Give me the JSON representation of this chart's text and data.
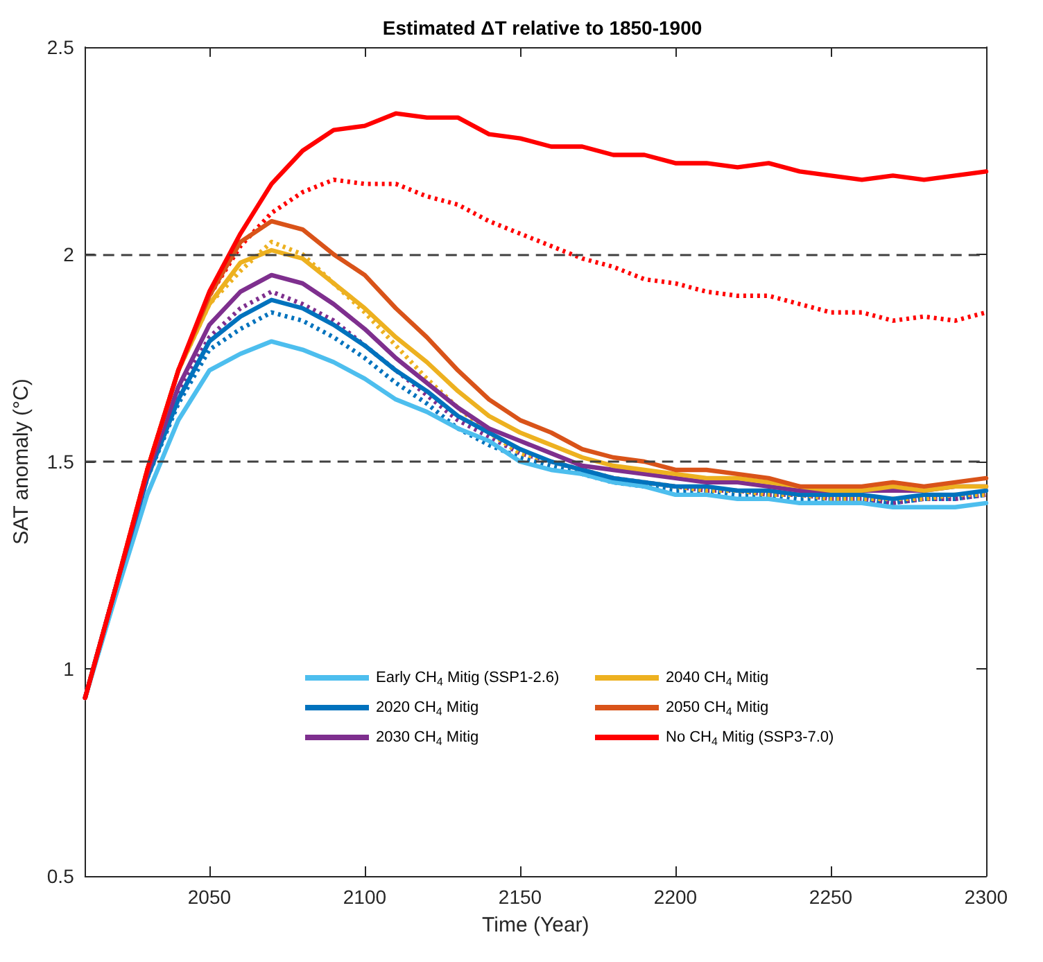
{
  "chart_data": {
    "type": "line",
    "title": "Estimated ΔT relative to 1850-1900",
    "xlabel": "Time (Year)",
    "ylabel": "SAT anomaly (°C)",
    "x": [
      2010,
      2020,
      2030,
      2040,
      2050,
      2060,
      2070,
      2080,
      2090,
      2100,
      2110,
      2120,
      2130,
      2140,
      2150,
      2160,
      2170,
      2180,
      2190,
      2200,
      2210,
      2220,
      2230,
      2240,
      2250,
      2260,
      2270,
      2280,
      2290,
      2300
    ],
    "series": [
      {
        "name": "Early CH$_{4}$ Mitig (SSP1-2.6)",
        "color": "#4dbeee",
        "values": [
          0.93,
          1.18,
          1.42,
          1.6,
          1.72,
          1.76,
          1.79,
          1.77,
          1.74,
          1.7,
          1.65,
          1.62,
          1.58,
          1.55,
          1.5,
          1.48,
          1.47,
          1.45,
          1.44,
          1.42,
          1.42,
          1.41,
          1.41,
          1.4,
          1.4,
          1.4,
          1.39,
          1.39,
          1.39,
          1.4
        ]
      },
      {
        "name": "2020 CH$_{4}$ Mitig",
        "color": "#0072bd",
        "values": [
          0.93,
          1.2,
          1.46,
          1.65,
          1.79,
          1.85,
          1.89,
          1.87,
          1.83,
          1.78,
          1.72,
          1.67,
          1.61,
          1.57,
          1.53,
          1.5,
          1.48,
          1.46,
          1.45,
          1.44,
          1.44,
          1.43,
          1.43,
          1.42,
          1.42,
          1.42,
          1.41,
          1.42,
          1.42,
          1.43
        ]
      },
      {
        "name": "2030 CH$_{4}$ Mitig",
        "color": "#7e2f8e",
        "values": [
          0.93,
          1.2,
          1.47,
          1.68,
          1.83,
          1.91,
          1.95,
          1.93,
          1.88,
          1.82,
          1.75,
          1.69,
          1.63,
          1.58,
          1.55,
          1.52,
          1.49,
          1.48,
          1.47,
          1.46,
          1.45,
          1.45,
          1.44,
          1.43,
          1.43,
          1.43,
          1.43,
          1.43,
          1.44,
          1.44
        ]
      },
      {
        "name": "2040 CH$_{4}$ Mitig",
        "color": "#edb120",
        "values": [
          null,
          null,
          1.48,
          1.72,
          1.88,
          1.98,
          2.01,
          1.99,
          1.93,
          1.87,
          1.8,
          1.74,
          1.67,
          1.61,
          1.57,
          1.54,
          1.51,
          1.49,
          1.48,
          1.47,
          1.46,
          1.46,
          1.45,
          1.44,
          1.43,
          1.43,
          1.44,
          1.43,
          1.44,
          1.44
        ]
      },
      {
        "name": "2050 CH$_{4}$ Mitig",
        "color": "#d95319",
        "values": [
          0.93,
          1.2,
          1.48,
          1.72,
          1.9,
          2.03,
          2.08,
          2.06,
          2.0,
          1.95,
          1.87,
          1.8,
          1.72,
          1.65,
          1.6,
          1.57,
          1.53,
          1.51,
          1.5,
          1.48,
          1.48,
          1.47,
          1.46,
          1.44,
          1.44,
          1.44,
          1.45,
          1.44,
          1.45,
          1.46
        ]
      },
      {
        "name": "No CH$_{4}$ Mitig (SSP3-7.0)",
        "color": "#ff0000",
        "values": [
          0.93,
          1.2,
          1.48,
          1.72,
          1.91,
          2.05,
          2.17,
          2.25,
          2.3,
          2.31,
          2.34,
          2.33,
          2.33,
          2.29,
          2.28,
          2.26,
          2.26,
          2.24,
          2.24,
          2.22,
          2.22,
          2.21,
          2.22,
          2.2,
          2.19,
          2.18,
          2.19,
          2.18,
          2.19,
          2.2
        ]
      },
      {
        "color": "#0072bd",
        "line_style": "dotted",
        "values": [
          0.93,
          1.2,
          1.46,
          1.64,
          1.77,
          1.82,
          1.86,
          1.84,
          1.8,
          1.75,
          1.69,
          1.64,
          1.58,
          1.54,
          1.51,
          1.49,
          1.47,
          1.45,
          1.44,
          1.43,
          1.43,
          1.42,
          1.42,
          1.41,
          1.41,
          1.41,
          1.4,
          1.41,
          1.41,
          1.42
        ]
      },
      {
        "color": "#7e2f8e",
        "line_style": "dotted",
        "values": [
          0.93,
          1.2,
          1.47,
          1.67,
          1.8,
          1.87,
          1.91,
          1.88,
          1.84,
          1.78,
          1.72,
          1.66,
          1.6,
          1.56,
          1.52,
          1.5,
          1.48,
          1.46,
          1.45,
          1.44,
          1.43,
          1.43,
          1.42,
          1.42,
          1.41,
          1.41,
          1.4,
          1.41,
          1.41,
          1.42
        ]
      },
      {
        "color": "#edb120",
        "line_style": "dotted",
        "values": [
          null,
          null,
          null,
          1.72,
          1.88,
          1.96,
          2.03,
          2.0,
          1.93,
          1.86,
          1.78,
          1.7,
          1.63,
          1.57,
          1.52,
          1.5,
          1.48,
          1.46,
          1.45,
          1.44,
          1.43,
          1.43,
          1.42,
          1.42,
          1.41,
          1.41,
          1.41,
          1.41,
          1.42,
          1.42
        ]
      },
      {
        "color": "#ff0000",
        "line_style": "dotted",
        "values": [
          0.93,
          1.2,
          1.48,
          1.72,
          1.9,
          2.02,
          2.1,
          2.15,
          2.18,
          2.17,
          2.17,
          2.14,
          2.12,
          2.08,
          2.05,
          2.02,
          1.99,
          1.97,
          1.94,
          1.93,
          1.91,
          1.9,
          1.9,
          1.88,
          1.86,
          1.86,
          1.84,
          1.85,
          1.84,
          1.86
        ]
      }
    ],
    "xlim": [
      2010,
      2300
    ],
    "xticks": [
      2050,
      2100,
      2150,
      2200,
      2250,
      2300
    ],
    "ylim": [
      0.5,
      2.5
    ],
    "yticks": [
      0.5,
      1,
      1.5,
      2,
      2.5
    ],
    "ref_lines": [
      {
        "axis": "y",
        "value": 2,
        "color": "#404040",
        "line_style": "dashed"
      },
      {
        "axis": "y",
        "value": 1.5,
        "color": "#404040",
        "line_style": "dashed"
      }
    ],
    "grid": false,
    "legend": "bottom",
    "marker": "none",
    "line_style": "solid"
  }
}
